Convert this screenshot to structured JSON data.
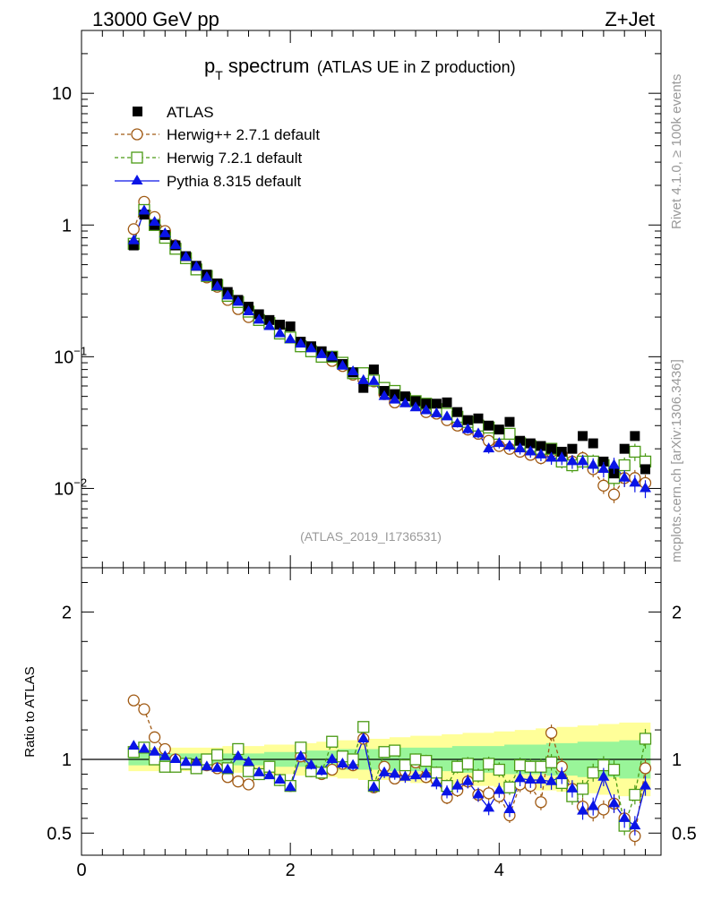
{
  "header": {
    "energy_label": "13000 GeV pp",
    "process_label": "Z+Jet"
  },
  "side_labels": {
    "rivet": "Rivet 4.1.0, ≥ 100k events",
    "mcplots": "mcplots.cern.ch [arXiv:1306.3436]"
  },
  "colors": {
    "atlas": "#000000",
    "herwigpp": "#a05a14",
    "herwig7": "#4a9a14",
    "pythia": "#0a14e6",
    "band_yellow": "#ffff99",
    "band_green": "#99f599"
  },
  "chart_data": [
    {
      "type": "scatter",
      "panel": "main",
      "title_main": "p",
      "title_sub": "T",
      "title_rest": " spectrum",
      "title_paren": "(ATLAS UE in Z production)",
      "watermark": "(ATLAS_2019_I1736531)",
      "yscale": "log",
      "ylim": [
        0.0025,
        30
      ],
      "xlim": [
        0,
        5.55
      ],
      "yticks": [
        {
          "value": 10,
          "label": "10",
          "exp": ""
        },
        {
          "value": 1,
          "label": "1",
          "exp": ""
        },
        {
          "value": 0.1,
          "label": "10",
          "exp": "−1"
        },
        {
          "value": 0.01,
          "label": "10",
          "exp": "−2"
        }
      ],
      "legend": [
        {
          "key": "atlas",
          "label": "ATLAS",
          "marker": "filled-square"
        },
        {
          "key": "herwigpp",
          "label": "Herwig++ 2.7.1 default",
          "marker": "open-circle"
        },
        {
          "key": "herwig7",
          "label": "Herwig 7.2.1 default",
          "marker": "open-square"
        },
        {
          "key": "pythia",
          "label": "Pythia 8.315 default",
          "marker": "filled-triangle"
        }
      ],
      "x": [
        0.5,
        0.6,
        0.7,
        0.8,
        0.9,
        1.0,
        1.1,
        1.2,
        1.3,
        1.4,
        1.5,
        1.6,
        1.7,
        1.8,
        1.9,
        2.0,
        2.1,
        2.2,
        2.3,
        2.4,
        2.5,
        2.6,
        2.7,
        2.8,
        2.9,
        3.0,
        3.1,
        3.2,
        3.3,
        3.4,
        3.5,
        3.6,
        3.7,
        3.8,
        3.9,
        4.0,
        4.1,
        4.2,
        4.3,
        4.4,
        4.5,
        4.6,
        4.7,
        4.8,
        4.9,
        5.0,
        5.1,
        5.2,
        5.3,
        5.4
      ],
      "series": [
        {
          "name": "ATLAS",
          "key": "atlas",
          "values": [
            0.7,
            1.2,
            1.0,
            0.84,
            0.7,
            0.58,
            0.49,
            0.42,
            0.36,
            0.31,
            0.27,
            0.24,
            0.21,
            0.19,
            0.175,
            0.17,
            0.13,
            0.12,
            0.11,
            0.1,
            0.088,
            0.076,
            0.058,
            0.08,
            0.055,
            0.052,
            0.05,
            0.046,
            0.044,
            0.044,
            0.045,
            0.038,
            0.033,
            0.034,
            0.03,
            0.028,
            0.032,
            0.023,
            0.022,
            0.021,
            0.02,
            0.019,
            0.02,
            0.025,
            0.022,
            0.016,
            0.013,
            0.02,
            0.025,
            0.014
          ]
        },
        {
          "name": "Herwig++ 2.7.1 default",
          "key": "herwigpp",
          "values": [
            0.93,
            1.5,
            1.15,
            0.9,
            0.7,
            0.56,
            0.47,
            0.4,
            0.34,
            0.27,
            0.23,
            0.2,
            0.19,
            0.18,
            0.15,
            0.14,
            0.12,
            0.11,
            0.1,
            0.093,
            0.085,
            0.073,
            0.067,
            0.065,
            0.052,
            0.045,
            0.046,
            0.045,
            0.038,
            0.037,
            0.033,
            0.03,
            0.028,
            0.026,
            0.023,
            0.021,
            0.02,
            0.019,
            0.018,
            0.017,
            0.019,
            0.018,
            0.016,
            0.017,
            0.014,
            0.0105,
            0.009,
            0.012,
            0.012,
            0.011
          ]
        },
        {
          "name": "Herwig 7.2.1 default",
          "key": "herwig7",
          "values": [
            0.72,
            1.3,
            1.0,
            0.8,
            0.66,
            0.56,
            0.46,
            0.41,
            0.35,
            0.29,
            0.26,
            0.22,
            0.19,
            0.18,
            0.15,
            0.14,
            0.12,
            0.11,
            0.1,
            0.1,
            0.09,
            0.075,
            0.075,
            0.066,
            0.058,
            0.055,
            0.048,
            0.046,
            0.044,
            0.04,
            0.037,
            0.035,
            0.032,
            0.03,
            0.029,
            0.026,
            0.026,
            0.022,
            0.021,
            0.02,
            0.02,
            0.016,
            0.015,
            0.016,
            0.016,
            0.015,
            0.012,
            0.015,
            0.019,
            0.016
          ]
        },
        {
          "name": "Pythia 8.315 default",
          "key": "pythia",
          "values": [
            0.76,
            1.28,
            1.05,
            0.86,
            0.7,
            0.57,
            0.48,
            0.4,
            0.34,
            0.29,
            0.26,
            0.22,
            0.19,
            0.17,
            0.15,
            0.135,
            0.125,
            0.115,
            0.104,
            0.1,
            0.085,
            0.077,
            0.066,
            0.065,
            0.05,
            0.047,
            0.044,
            0.041,
            0.039,
            0.037,
            0.035,
            0.031,
            0.028,
            0.026,
            0.02,
            0.022,
            0.021,
            0.02,
            0.019,
            0.018,
            0.017,
            0.017,
            0.016,
            0.016,
            0.015,
            0.014,
            0.015,
            0.012,
            0.011,
            0.01
          ]
        }
      ]
    },
    {
      "type": "scatter",
      "panel": "ratio",
      "ylabel": "Ratio to ATLAS",
      "ylim": [
        0.35,
        2.3
      ],
      "xlim": [
        0,
        5.55
      ],
      "yticks": [
        {
          "value": 2,
          "label": "2"
        },
        {
          "value": 1,
          "label": "1"
        },
        {
          "value": 0.5,
          "label": "0.5"
        }
      ],
      "xticks": [
        {
          "value": 0,
          "label": "0"
        },
        {
          "value": 2,
          "label": "2"
        },
        {
          "value": 4,
          "label": "4"
        }
      ],
      "x": [
        0.5,
        0.6,
        0.7,
        0.8,
        0.9,
        1.0,
        1.1,
        1.2,
        1.3,
        1.4,
        1.5,
        1.6,
        1.7,
        1.8,
        1.9,
        2.0,
        2.1,
        2.2,
        2.3,
        2.4,
        2.5,
        2.6,
        2.7,
        2.8,
        2.9,
        3.0,
        3.1,
        3.2,
        3.3,
        3.4,
        3.5,
        3.6,
        3.7,
        3.8,
        3.9,
        4.0,
        4.1,
        4.2,
        4.3,
        4.4,
        4.5,
        4.6,
        4.7,
        4.8,
        4.9,
        5.0,
        5.1,
        5.2,
        5.3,
        5.4
      ],
      "band_green": [
        0.04,
        0.04,
        0.04,
        0.04,
        0.04,
        0.04,
        0.04,
        0.04,
        0.04,
        0.04,
        0.04,
        0.04,
        0.04,
        0.05,
        0.05,
        0.05,
        0.05,
        0.06,
        0.06,
        0.06,
        0.07,
        0.07,
        0.07,
        0.07,
        0.07,
        0.08,
        0.08,
        0.08,
        0.08,
        0.08,
        0.08,
        0.09,
        0.09,
        0.09,
        0.09,
        0.09,
        0.1,
        0.1,
        0.1,
        0.1,
        0.11,
        0.11,
        0.11,
        0.12,
        0.12,
        0.12,
        0.12,
        0.13,
        0.13,
        0.13
      ],
      "band_yellow": [
        0.08,
        0.08,
        0.08,
        0.08,
        0.08,
        0.08,
        0.08,
        0.08,
        0.08,
        0.09,
        0.09,
        0.09,
        0.09,
        0.1,
        0.1,
        0.1,
        0.11,
        0.11,
        0.12,
        0.12,
        0.13,
        0.13,
        0.14,
        0.14,
        0.14,
        0.15,
        0.15,
        0.16,
        0.16,
        0.16,
        0.17,
        0.17,
        0.18,
        0.18,
        0.18,
        0.19,
        0.19,
        0.2,
        0.2,
        0.21,
        0.21,
        0.22,
        0.22,
        0.23,
        0.23,
        0.24,
        0.24,
        0.25,
        0.25,
        0.25
      ],
      "series": [
        {
          "name": "Herwig++ 2.7.1 default",
          "key": "herwigpp",
          "values": [
            1.4,
            1.34,
            1.15,
            1.07,
            1.0,
            0.97,
            0.96,
            0.96,
            0.94,
            0.88,
            0.85,
            0.83,
            0.9,
            0.95,
            0.86,
            0.82,
            1.02,
            0.92,
            0.9,
            0.93,
            0.97,
            0.96,
            1.14,
            0.81,
            0.95,
            0.87,
            0.92,
            0.98,
            0.88,
            0.86,
            0.74,
            0.79,
            0.85,
            0.76,
            0.77,
            0.75,
            0.62,
            0.83,
            0.82,
            0.71,
            1.18,
            0.95,
            0.8,
            0.68,
            0.64,
            0.66,
            0.7,
            0.6,
            0.48,
            0.94
          ]
        },
        {
          "name": "Herwig 7.2.1 default",
          "key": "herwig7",
          "values": [
            1.05,
            1.08,
            1.0,
            0.95,
            0.95,
            0.97,
            0.94,
            1.0,
            1.03,
            0.94,
            1.07,
            0.92,
            0.9,
            0.95,
            0.86,
            0.82,
            1.08,
            0.92,
            0.91,
            1.12,
            1.02,
            1.0,
            1.22,
            0.82,
            1.05,
            1.06,
            0.96,
            1.0,
            0.99,
            0.91,
            0.82,
            0.95,
            0.97,
            0.89,
            0.97,
            0.93,
            0.81,
            0.96,
            0.95,
            0.95,
            0.98,
            0.84,
            0.75,
            0.8,
            0.91,
            0.96,
            0.93,
            0.55,
            0.76,
            1.14
          ]
        },
        {
          "name": "Pythia 8.315 default",
          "key": "pythia",
          "values": [
            1.09,
            1.07,
            1.05,
            1.02,
            1.0,
            0.98,
            0.98,
            0.95,
            0.94,
            0.93,
            1.02,
            0.98,
            0.91,
            0.89,
            0.86,
            0.81,
            1.02,
            0.96,
            0.92,
            1.0,
            0.97,
            0.96,
            1.14,
            0.81,
            0.91,
            0.9,
            0.88,
            0.89,
            0.9,
            0.84,
            0.78,
            0.82,
            0.85,
            0.76,
            0.67,
            0.79,
            0.66,
            0.87,
            0.86,
            0.86,
            0.85,
            0.89,
            0.8,
            0.65,
            0.68,
            0.88,
            0.7,
            0.6,
            0.55,
            0.82
          ]
        }
      ]
    }
  ]
}
